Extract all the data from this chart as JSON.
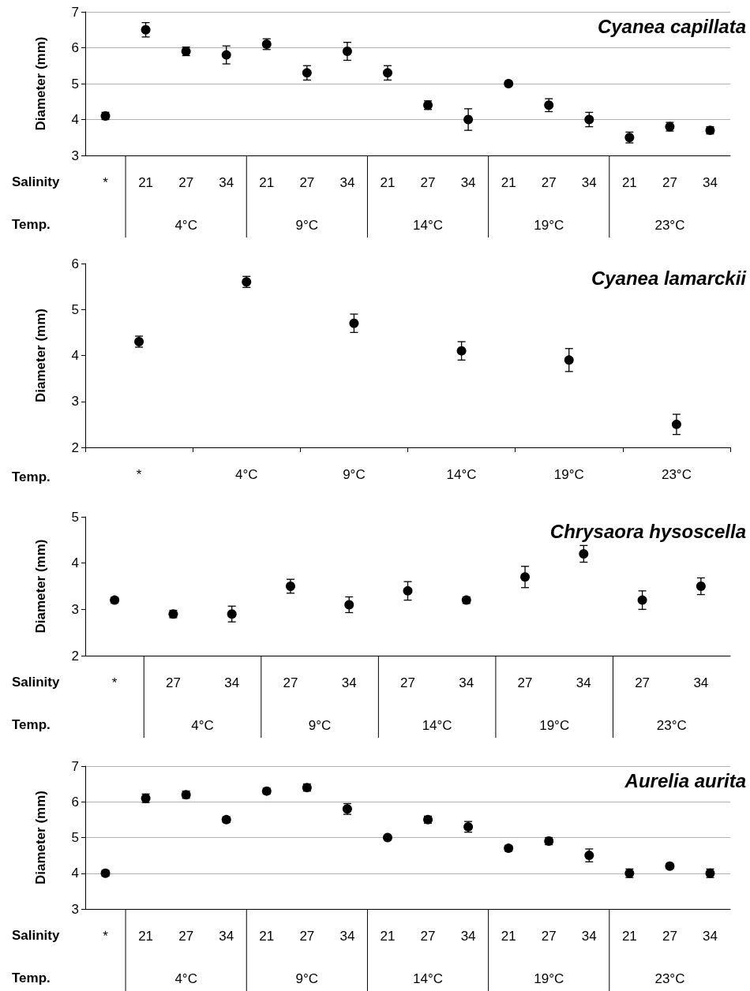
{
  "chart_data": [
    {
      "type": "scatter",
      "title": "Cyanea capillata",
      "ylabel": "Diameter (mm)",
      "xlabel": "Temp.",
      "annotations": [
        "Salinity",
        "4°C",
        "9°C",
        "14°C",
        "19°C",
        "23°C"
      ],
      "categories": [
        "*",
        "21",
        "27",
        "34",
        "21",
        "27",
        "34",
        "21",
        "27",
        "34",
        "21",
        "27",
        "34",
        "21",
        "27",
        "34"
      ],
      "series": [
        {
          "color": "#000000",
          "values": [
            4.1,
            6.5,
            5.9,
            5.8,
            6.1,
            5.3,
            5.9,
            5.3,
            4.4,
            4.0,
            5.0,
            4.4,
            4.0,
            3.5,
            3.8,
            3.7
          ],
          "errors": [
            0.1,
            0.2,
            0.12,
            0.25,
            0.15,
            0.2,
            0.25,
            0.2,
            0.12,
            0.3,
            0.06,
            0.18,
            0.2,
            0.15,
            0.12,
            0.1
          ]
        }
      ],
      "ylim": [
        3,
        7
      ],
      "yticks": [
        3,
        4,
        5,
        6,
        7
      ],
      "grid": "y",
      "marker": "circle"
    },
    {
      "type": "scatter",
      "title": "Cyanea lamarckii",
      "ylabel": "Diameter (mm)",
      "xlabel": "Temp.",
      "categories": [
        "*",
        "4°C",
        "9°C",
        "14°C",
        "19°C",
        "23°C"
      ],
      "series": [
        {
          "color": "#000000",
          "values": [
            4.3,
            5.6,
            4.7,
            4.1,
            3.9,
            2.5
          ],
          "errors": [
            0.12,
            0.12,
            0.2,
            0.2,
            0.25,
            0.22
          ]
        }
      ],
      "ylim": [
        2,
        6
      ],
      "yticks": [
        2,
        3,
        4,
        5,
        6
      ],
      "grid": false,
      "marker": "circle"
    },
    {
      "type": "scatter",
      "title": "Chrysaora hysoscella",
      "ylabel": "Diameter (mm)",
      "xlabel": "Temp.",
      "annotations": [
        "Salinity",
        "4°C",
        "9°C",
        "14°C",
        "19°C",
        "23°C"
      ],
      "categories": [
        "*",
        "27",
        "34",
        "27",
        "34",
        "27",
        "34",
        "27",
        "34",
        "27",
        "34"
      ],
      "series": [
        {
          "color": "#000000",
          "values": [
            3.2,
            2.9,
            2.9,
            3.5,
            3.1,
            3.4,
            3.2,
            3.7,
            4.2,
            3.2,
            3.5
          ],
          "errors": [
            0.06,
            0.08,
            0.17,
            0.15,
            0.17,
            0.2,
            0.07,
            0.23,
            0.18,
            0.2,
            0.18
          ]
        }
      ],
      "ylim": [
        2,
        5
      ],
      "yticks": [
        2,
        3,
        4,
        5
      ],
      "grid": false,
      "marker": "circle"
    },
    {
      "type": "scatter",
      "title": "Aurelia aurita",
      "ylabel": "Diameter (mm)",
      "xlabel": "Temp.",
      "annotations": [
        "Salinity",
        "4°C",
        "9°C",
        "14°C",
        "19°C",
        "23°C"
      ],
      "categories": [
        "*",
        "21",
        "27",
        "34",
        "21",
        "27",
        "34",
        "21",
        "27",
        "34",
        "21",
        "27",
        "34",
        "21",
        "27",
        "34"
      ],
      "series": [
        {
          "color": "#000000",
          "values": [
            4.0,
            6.1,
            6.2,
            5.5,
            6.3,
            6.4,
            5.8,
            5.0,
            5.5,
            5.3,
            4.7,
            4.9,
            4.5,
            4.0,
            4.2,
            4.0
          ],
          "errors": [
            0.08,
            0.12,
            0.1,
            0.08,
            0.08,
            0.1,
            0.15,
            0.05,
            0.1,
            0.15,
            0.08,
            0.1,
            0.18,
            0.12,
            0.07,
            0.12
          ]
        }
      ],
      "ylim": [
        3,
        7
      ],
      "yticks": [
        3,
        4,
        5,
        6,
        7
      ],
      "grid": "y",
      "marker": "circle"
    }
  ]
}
